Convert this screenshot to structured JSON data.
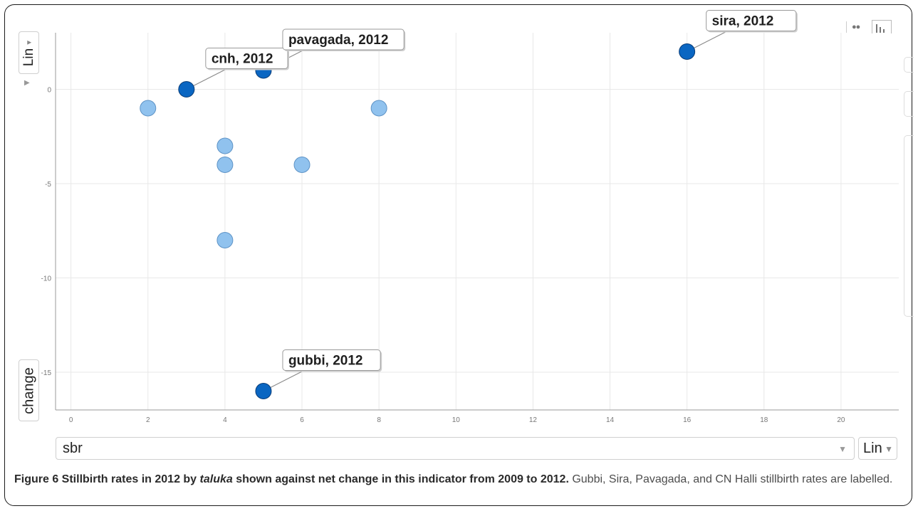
{
  "controls": {
    "y_scale": "Lin",
    "y_variable": "change",
    "x_variable": "sbr",
    "x_scale": "Lin",
    "dropdown_arrow": "▼",
    "view_icons": [
      "bubble-chart-icon",
      "bar-chart-icon"
    ]
  },
  "chart_data": {
    "type": "scatter",
    "xlabel": "sbr",
    "ylabel": "change",
    "xlim": [
      -0.4,
      21.5
    ],
    "ylim": [
      -17,
      3
    ],
    "x_ticks": [
      0,
      2,
      4,
      6,
      8,
      10,
      12,
      14,
      16,
      18,
      20
    ],
    "y_ticks": [
      0,
      -5,
      -10,
      -15
    ],
    "grid": true,
    "colors": {
      "highlight": "#0a66c2",
      "normal": "#90c2ee",
      "grid": "#e8e8e8"
    },
    "points": [
      {
        "x": 3,
        "y": 0,
        "label": "cnh, 2012",
        "highlight": true
      },
      {
        "x": 5,
        "y": 1,
        "label": "pavagada, 2012",
        "highlight": true
      },
      {
        "x": 16,
        "y": 2,
        "label": "sira, 2012",
        "highlight": true
      },
      {
        "x": 5,
        "y": -16,
        "label": "gubbi, 2012",
        "highlight": true
      },
      {
        "x": 2,
        "y": -1,
        "label": "",
        "highlight": false
      },
      {
        "x": 8,
        "y": -1,
        "label": "",
        "highlight": false
      },
      {
        "x": 4,
        "y": -3,
        "label": "",
        "highlight": false
      },
      {
        "x": 4,
        "y": -4,
        "label": "",
        "highlight": false
      },
      {
        "x": 6,
        "y": -4,
        "label": "",
        "highlight": false
      },
      {
        "x": 4,
        "y": -8,
        "label": "",
        "highlight": false
      }
    ]
  },
  "caption": {
    "title_pre": "Figure 6 Stillbirth rates in 2012 by ",
    "title_italic": "taluka",
    "title_post": " shown against net change in this indicator from 2009 to 2012.",
    "body": " Gubbi, Sira, Pavagada, and CN Halli stillbirth rates are labelled."
  }
}
